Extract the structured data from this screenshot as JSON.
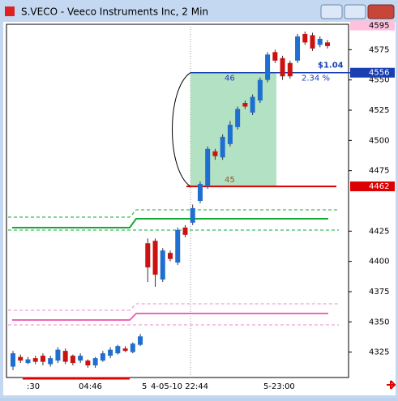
{
  "window": {
    "title": "S.VECO - Veeco Instruments Inc, 2 Min"
  },
  "chart_data": {
    "type": "candlestick",
    "x_labels": [
      ":30",
      "04:46",
      "5",
      "4-05-10 22:44",
      "5-23:00"
    ],
    "open": [
      4313,
      4321,
      4316,
      4320,
      4322,
      4315,
      4318,
      4326,
      4322,
      4318,
      4318,
      4314,
      4318,
      4322,
      4324,
      4328,
      4325,
      4331,
      4415,
      4417,
      4385,
      4407,
      4399,
      4428,
      4432,
      4450,
      4462,
      4491,
      4486,
      4497,
      4511,
      4531,
      4523,
      4533,
      4550,
      4573,
      4568,
      4564,
      4566,
      4588,
      4587,
      4579,
      4581
    ],
    "high": [
      4326,
      4323,
      4321,
      4322,
      4324,
      4322,
      4329,
      4328,
      4323,
      4324,
      4319,
      4321,
      4326,
      4329,
      4331,
      4330,
      4333,
      4340,
      4419,
      4419,
      4411,
      4409,
      4428,
      4430,
      4447,
      4466,
      4495,
      4493,
      4505,
      4516,
      4528,
      4533,
      4538,
      4552,
      4573,
      4575,
      4570,
      4566,
      4588,
      4590,
      4589,
      4586,
      4583
    ],
    "low": [
      4310,
      4316,
      4315,
      4315,
      4314,
      4313,
      4316,
      4315,
      4314,
      4316,
      4312,
      4312,
      4317,
      4320,
      4323,
      4325,
      4324,
      4330,
      4383,
      4379,
      4383,
      4400,
      4397,
      4420,
      4430,
      4448,
      4460,
      4484,
      4484,
      4495,
      4509,
      4526,
      4521,
      4531,
      4548,
      4564,
      4550,
      4551,
      4564,
      4579,
      4574,
      4577,
      4576
    ],
    "close": [
      4324,
      4318,
      4319,
      4317,
      4317,
      4320,
      4327,
      4317,
      4316,
      4322,
      4314,
      4320,
      4324,
      4327,
      4330,
      4326,
      4332,
      4338,
      4395,
      4389,
      4409,
      4402,
      4426,
      4422,
      4444,
      4464,
      4493,
      4487,
      4503,
      4513,
      4526,
      4528,
      4536,
      4550,
      4571,
      4566,
      4553,
      4553,
      4586,
      4581,
      4576,
      4584,
      4578
    ],
    "up_color": "#1f6fd1",
    "down_color": "#cc1111",
    "ylim": [
      4304,
      4596
    ],
    "yticks": [
      4325,
      4350,
      4375,
      4400,
      4425,
      4475,
      4500,
      4525,
      4550,
      4575
    ],
    "price_labels": [
      4595,
      4556,
      4462
    ],
    "annotations": [
      "46",
      "45",
      "$1.04",
      "2.34 %"
    ]
  }
}
